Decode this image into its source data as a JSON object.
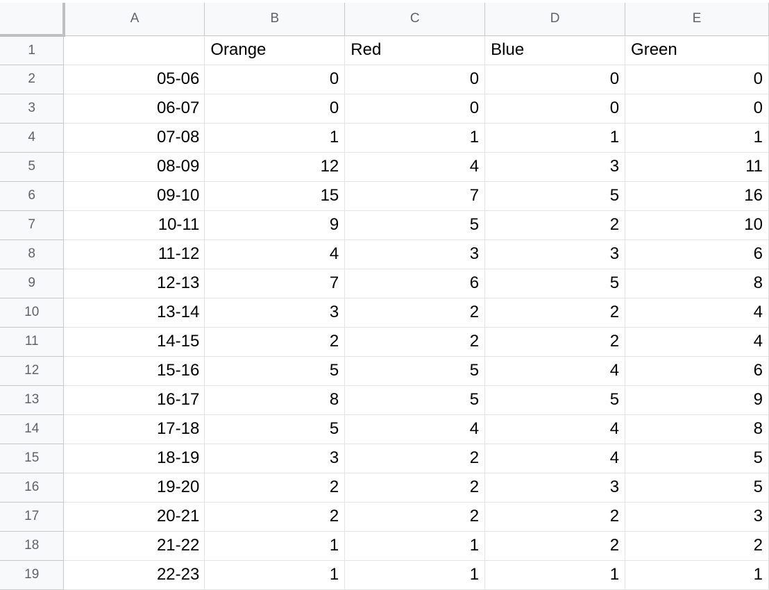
{
  "columns": [
    "A",
    "B",
    "C",
    "D",
    "E"
  ],
  "header_row": {
    "row_number": "1",
    "cells": [
      "",
      "Orange",
      "Red",
      "Blue",
      "Green"
    ]
  },
  "rows": [
    {
      "row_number": "2",
      "label": "05-06",
      "values": [
        "0",
        "0",
        "0",
        "0"
      ]
    },
    {
      "row_number": "3",
      "label": "06-07",
      "values": [
        "0",
        "0",
        "0",
        "0"
      ]
    },
    {
      "row_number": "4",
      "label": "07-08",
      "values": [
        "1",
        "1",
        "1",
        "1"
      ]
    },
    {
      "row_number": "5",
      "label": "08-09",
      "values": [
        "12",
        "4",
        "3",
        "11"
      ]
    },
    {
      "row_number": "6",
      "label": "09-10",
      "values": [
        "15",
        "7",
        "5",
        "16"
      ]
    },
    {
      "row_number": "7",
      "label": "10-11",
      "values": [
        "9",
        "5",
        "2",
        "10"
      ]
    },
    {
      "row_number": "8",
      "label": "11-12",
      "values": [
        "4",
        "3",
        "3",
        "6"
      ]
    },
    {
      "row_number": "9",
      "label": "12-13",
      "values": [
        "7",
        "6",
        "5",
        "8"
      ]
    },
    {
      "row_number": "10",
      "label": "13-14",
      "values": [
        "3",
        "2",
        "2",
        "4"
      ]
    },
    {
      "row_number": "11",
      "label": "14-15",
      "values": [
        "2",
        "2",
        "2",
        "4"
      ]
    },
    {
      "row_number": "12",
      "label": "15-16",
      "values": [
        "5",
        "5",
        "4",
        "6"
      ]
    },
    {
      "row_number": "13",
      "label": "16-17",
      "values": [
        "8",
        "5",
        "5",
        "9"
      ]
    },
    {
      "row_number": "14",
      "label": "17-18",
      "values": [
        "5",
        "4",
        "4",
        "8"
      ]
    },
    {
      "row_number": "15",
      "label": "18-19",
      "values": [
        "3",
        "2",
        "4",
        "5"
      ]
    },
    {
      "row_number": "16",
      "label": "19-20",
      "values": [
        "2",
        "2",
        "3",
        "5"
      ]
    },
    {
      "row_number": "17",
      "label": "20-21",
      "values": [
        "2",
        "2",
        "2",
        "3"
      ]
    },
    {
      "row_number": "18",
      "label": "21-22",
      "values": [
        "1",
        "1",
        "2",
        "2"
      ]
    },
    {
      "row_number": "19",
      "label": "22-23",
      "values": [
        "1",
        "1",
        "1",
        "1"
      ]
    }
  ],
  "colors": {
    "header_bg": "#f8f9fa",
    "header_text": "#5f6368",
    "grid_line": "#e2e3e3",
    "freeze_bar": "#c0c0c0"
  }
}
